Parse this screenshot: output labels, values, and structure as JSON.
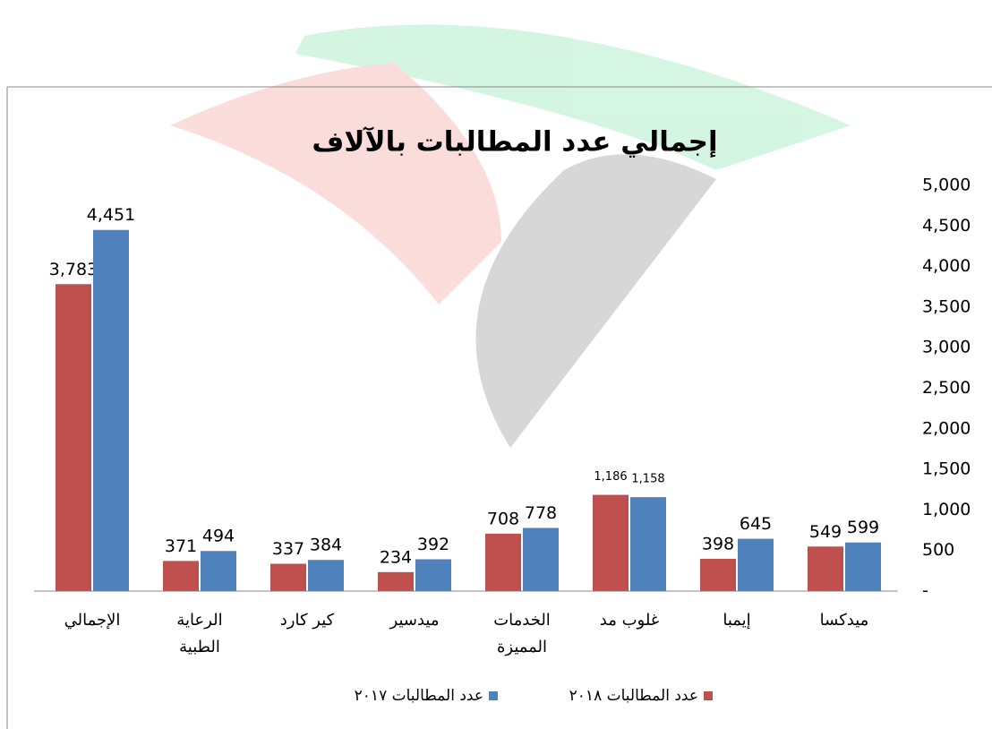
{
  "chart_data": {
    "type": "bar",
    "title": "إجمالي عدد المطالبات بالآلاف",
    "categories": [
      "الإجمالي",
      "الرعاية\nالطبية",
      "كير كارد",
      "ميدسير",
      "الخدمات\nالمميزة",
      "غلوب مد",
      "إيمبا",
      "ميدكسا"
    ],
    "series": [
      {
        "name": "عدد المطالبات ٢٠١٨",
        "color": "#c0504d",
        "values": [
          3783,
          371,
          337,
          234,
          708,
          1186,
          398,
          549
        ],
        "value_labels": [
          "3,783",
          "371",
          "337",
          "234",
          "708",
          "1,186",
          "398",
          "549"
        ]
      },
      {
        "name": "عدد المطالبات ٢٠١٧",
        "color": "#4f81bd",
        "values": [
          4451,
          494,
          384,
          392,
          778,
          1158,
          645,
          599
        ],
        "value_labels": [
          "4,451",
          "494",
          "384",
          "392",
          "778",
          "1,158",
          "645",
          "599"
        ]
      }
    ],
    "ylim": [
      0,
      5000
    ],
    "yticks": [
      {
        "value": 0,
        "label": "-"
      },
      500,
      {
        "value": 1000,
        "label": "1,000"
      },
      {
        "value": 1500,
        "label": "1,500"
      },
      {
        "value": 2000,
        "label": "2,000"
      },
      {
        "value": 2500,
        "label": "2,500"
      },
      {
        "value": 3000,
        "label": "3,000"
      },
      {
        "value": 3500,
        "label": "3,500"
      },
      {
        "value": 4000,
        "label": "4,000"
      },
      {
        "value": 4500,
        "label": "4,500"
      },
      {
        "value": 5000,
        "label": "5,000"
      }
    ],
    "y_axis_side": "right",
    "grid": false
  }
}
